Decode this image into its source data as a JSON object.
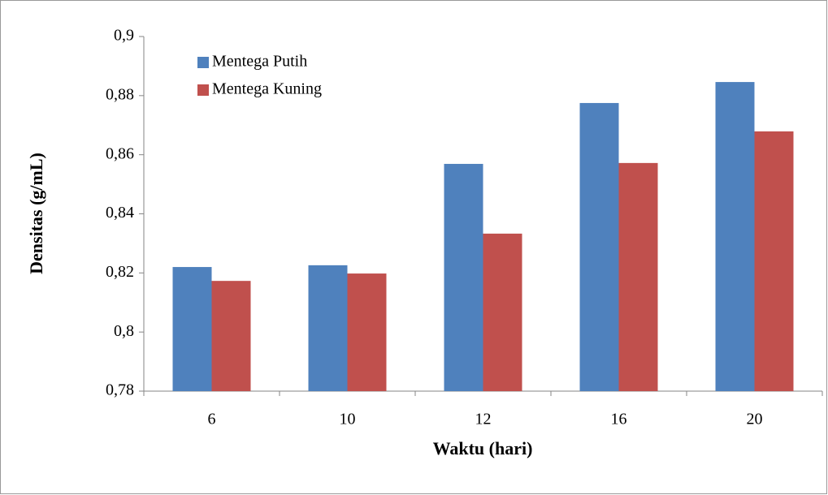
{
  "chart_data": {
    "type": "bar",
    "x_label": "Waktu (hari)",
    "y_label": "Densitas (g/mL)",
    "categories": [
      "6",
      "10",
      "12",
      "16",
      "20"
    ],
    "series": [
      {
        "name": "Mentega Putih",
        "color": "#4f81bd",
        "values": [
          0.822,
          0.8226,
          0.8569,
          0.8775,
          0.8846
        ]
      },
      {
        "name": "Mentega Kuning",
        "color": "#c0504d",
        "values": [
          0.8173,
          0.8198,
          0.8333,
          0.8572,
          0.8679
        ]
      }
    ],
    "ylim": [
      0.78,
      0.9
    ],
    "yticks": [
      {
        "value": 0.78,
        "label": "0,78"
      },
      {
        "value": 0.8,
        "label": "0,8"
      },
      {
        "value": 0.82,
        "label": "0,82"
      },
      {
        "value": 0.84,
        "label": "0,84"
      },
      {
        "value": 0.86,
        "label": "0,86"
      },
      {
        "value": 0.88,
        "label": "0,88"
      },
      {
        "value": 0.9,
        "label": "0,9"
      }
    ],
    "legend": "top-left",
    "grid": false
  }
}
